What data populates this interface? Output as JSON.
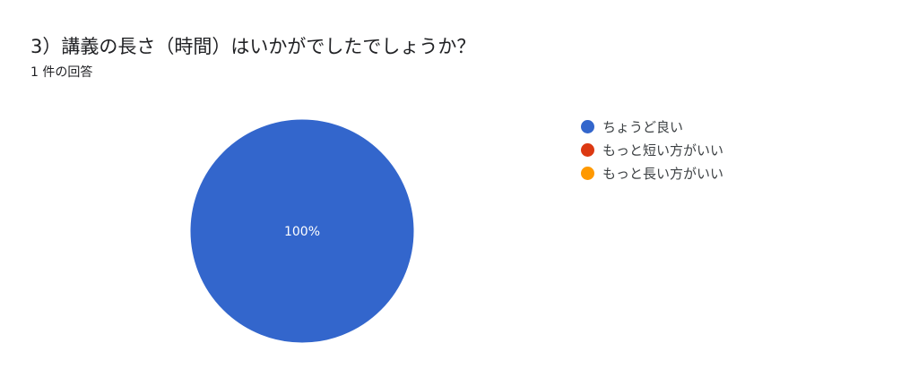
{
  "header": {
    "title": "3）講義の長さ（時間）はいかがでしたでしょうか？",
    "response_count": "1 件の回答"
  },
  "chart_data": {
    "type": "pie",
    "categories": [
      "ちょうど良い",
      "もっと短い方がいい",
      "もっと長い方がいい"
    ],
    "values": [
      1,
      0,
      0
    ],
    "colors": [
      "#3366cc",
      "#dc3912",
      "#ff9900"
    ],
    "data_labels": [
      "100%",
      "",
      ""
    ],
    "legend_position": "right"
  }
}
